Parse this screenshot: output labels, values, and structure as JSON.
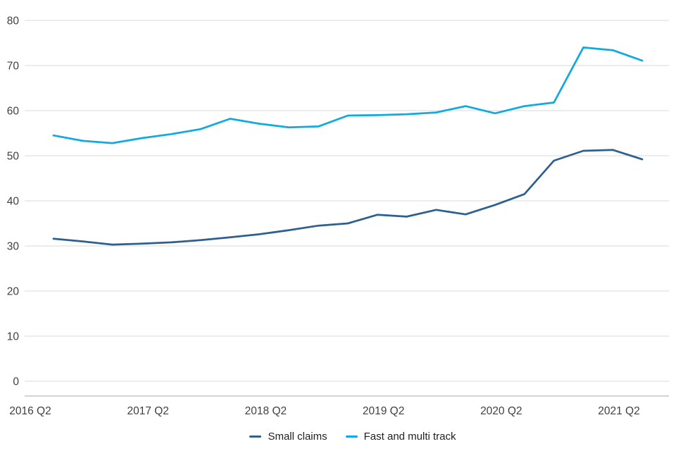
{
  "chart_data": {
    "type": "line",
    "categories": [
      "2016 Q2",
      "2016 Q3",
      "2016 Q4",
      "2017 Q1",
      "2017 Q2",
      "2017 Q3",
      "2017 Q4",
      "2018 Q1",
      "2018 Q2",
      "2018 Q3",
      "2018 Q4",
      "2019 Q1",
      "2019 Q2",
      "2019 Q3",
      "2019 Q4",
      "2020 Q1",
      "2020 Q2",
      "2020 Q3",
      "2020 Q4",
      "2021 Q1",
      "2021 Q2"
    ],
    "x_tick_labels": [
      "2016 Q2",
      "2017 Q2",
      "2018 Q2",
      "2019 Q2",
      "2020 Q2",
      "2021 Q2"
    ],
    "x_tick_indices": [
      0,
      4,
      8,
      12,
      16,
      20
    ],
    "y_tick_labels": [
      "0",
      "10",
      "20",
      "30",
      "40",
      "50",
      "60",
      "70",
      "80"
    ],
    "ylim": [
      0,
      80
    ],
    "y_tick_step": 10,
    "grid": "horizontal",
    "legend_position": "bottom",
    "series": [
      {
        "name": "Small claims",
        "color": "#2e608f",
        "values": [
          31.6,
          31.0,
          30.3,
          30.5,
          30.8,
          31.3,
          31.9,
          32.6,
          33.5,
          34.5,
          35.0,
          36.9,
          36.5,
          38.0,
          37.0,
          39.1,
          41.5,
          48.9,
          51.1,
          51.3,
          49.2
        ]
      },
      {
        "name": "Fast and multi track",
        "color": "#12a9e0",
        "values": [
          54.5,
          53.3,
          52.8,
          53.9,
          54.8,
          55.9,
          58.2,
          57.1,
          56.3,
          56.5,
          58.9,
          59.0,
          59.2,
          59.6,
          61.0,
          59.4,
          61.0,
          61.8,
          74.0,
          73.4,
          71.1
        ]
      }
    ],
    "colors": {
      "grid_line": "#d9d9d9",
      "axis_line": "#a8a8a8",
      "tick_label": "#404040"
    }
  }
}
